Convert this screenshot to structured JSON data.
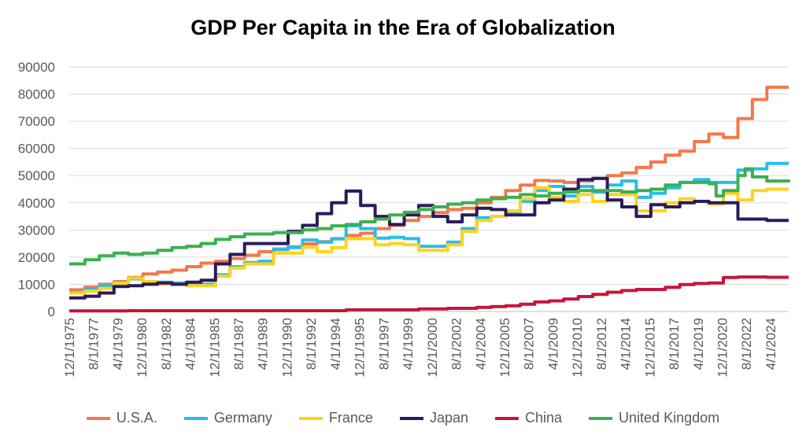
{
  "chart_data": {
    "type": "line",
    "title": "GDP Per Capita in the Era of Globalization",
    "xlabel": "",
    "ylabel": "",
    "ylim": [
      0,
      90000
    ],
    "yticks": [
      0,
      10000,
      20000,
      30000,
      40000,
      50000,
      60000,
      70000,
      80000,
      90000
    ],
    "xlim": [
      1975.92,
      2025.5
    ],
    "x_tick_labels": [
      "12/1/1975",
      "8/1/1977",
      "4/1/1979",
      "12/1/1980",
      "8/1/1982",
      "4/1/1984",
      "12/1/1985",
      "8/1/1987",
      "4/1/1989",
      "12/1/1990",
      "8/1/1992",
      "4/1/1994",
      "12/1/1995",
      "8/1/1997",
      "4/1/1999",
      "12/1/2000",
      "8/1/2002",
      "4/1/2004",
      "12/1/2005",
      "8/1/2007",
      "4/1/2009",
      "12/1/2010",
      "8/1/2012",
      "4/1/2014",
      "12/1/2015",
      "8/1/2017",
      "4/1/2019",
      "12/1/2020",
      "8/1/2022",
      "4/1/2024"
    ],
    "x_tick_values": [
      1975.92,
      1977.58,
      1979.25,
      1980.92,
      1982.58,
      1984.25,
      1985.92,
      1987.58,
      1989.25,
      1990.92,
      1992.58,
      1994.25,
      1995.92,
      1997.58,
      1999.25,
      2000.92,
      2002.58,
      2004.25,
      2005.92,
      2007.58,
      2009.25,
      2010.92,
      2012.58,
      2014.25,
      2015.92,
      2017.58,
      2019.25,
      2020.92,
      2022.58,
      2024.25
    ],
    "grid": true,
    "legend_position": "bottom",
    "series": [
      {
        "name": "U.S.A.",
        "color": "#F4784A",
        "x": [
          1975.92,
          1977,
          1978,
          1979,
          1980,
          1981,
          1982,
          1983,
          1984,
          1985,
          1986,
          1987,
          1988,
          1989,
          1990,
          1991,
          1992,
          1993,
          1994,
          1995,
          1996,
          1997,
          1998,
          1999,
          2000,
          2001,
          2002,
          2003,
          2004,
          2005,
          2006,
          2007,
          2008,
          2009,
          2010,
          2011,
          2012,
          2013,
          2014,
          2015,
          2016,
          2017,
          2018,
          2019,
          2020,
          2021,
          2022,
          2023,
          2024,
          2025.5
        ],
        "values": [
          8000,
          9000,
          10000,
          11000,
          12500,
          13800,
          14500,
          15200,
          16500,
          17800,
          18500,
          19500,
          20700,
          22000,
          23000,
          23800,
          24900,
          25700,
          26800,
          28000,
          28800,
          30500,
          31700,
          33500,
          35000,
          36400,
          37500,
          38000,
          40000,
          42000,
          44500,
          46500,
          48200,
          48000,
          47500,
          48000,
          48900,
          50000,
          51000,
          53000,
          55000,
          57500,
          59000,
          62500,
          65300,
          64000,
          71000,
          78000,
          82500,
          82500
        ]
      },
      {
        "name": "Germany",
        "color": "#27BDEB",
        "x": [
          1975.92,
          1977,
          1978,
          1979,
          1980,
          1981,
          1982,
          1983,
          1984,
          1985,
          1986,
          1987,
          1988,
          1989,
          1990,
          1991,
          1992,
          1993,
          1994,
          1995,
          1996,
          1997,
          1998,
          1999,
          2000,
          2001,
          2002,
          2003,
          2004,
          2005,
          2006,
          2007,
          2008,
          2009,
          2010,
          2011,
          2012,
          2013,
          2014,
          2015,
          2016,
          2017,
          2018,
          2019,
          2020,
          2021,
          2022,
          2023,
          2024,
          2025.5
        ],
        "values": [
          7000,
          8200,
          9500,
          10500,
          12000,
          11000,
          10800,
          10500,
          10000,
          10000,
          13500,
          16500,
          18000,
          18500,
          22800,
          23500,
          26300,
          25500,
          26700,
          31500,
          30500,
          27000,
          27300,
          26800,
          24000,
          24000,
          25500,
          30500,
          34500,
          35000,
          36700,
          40500,
          44500,
          46000,
          42500,
          46000,
          43900,
          46500,
          48000,
          42000,
          43500,
          45500,
          47500,
          48500,
          47500,
          47500,
          52000,
          52500,
          54500,
          54500
        ]
      },
      {
        "name": "France",
        "color": "#FFD21F",
        "x": [
          1975.92,
          1977,
          1978,
          1979,
          1980,
          1981,
          1982,
          1983,
          1984,
          1985,
          1986,
          1987,
          1988,
          1989,
          1990,
          1991,
          1992,
          1993,
          1994,
          1995,
          1996,
          1997,
          1998,
          1999,
          2000,
          2001,
          2002,
          2003,
          2004,
          2005,
          2006,
          2007,
          2008,
          2009,
          2010,
          2011,
          2012,
          2013,
          2014,
          2015,
          2016,
          2017,
          2018,
          2019,
          2020,
          2021,
          2022,
          2023,
          2024,
          2025.5
        ],
        "values": [
          6800,
          7500,
          8500,
          10500,
          12300,
          11000,
          10000,
          10000,
          9500,
          9500,
          13000,
          16000,
          17500,
          17500,
          21500,
          21500,
          23600,
          22000,
          23500,
          26800,
          26800,
          24500,
          25000,
          24500,
          22500,
          22500,
          24500,
          29500,
          33500,
          35000,
          37000,
          41500,
          45500,
          42000,
          40500,
          43000,
          40500,
          43000,
          43000,
          37000,
          37000,
          40000,
          41500,
          40500,
          39500,
          43500,
          41000,
          44500,
          45000,
          45000
        ]
      },
      {
        "name": "Japan",
        "color": "#2B1B59",
        "x": [
          1975.92,
          1977,
          1978,
          1979,
          1980,
          1981,
          1982,
          1983,
          1984,
          1985,
          1986,
          1987,
          1988,
          1989,
          1990,
          1991,
          1992,
          1993,
          1994,
          1995,
          1996,
          1997,
          1998,
          1999,
          2000,
          2001,
          2002,
          2003,
          2004,
          2005,
          2006,
          2007,
          2008,
          2009,
          2010,
          2011,
          2012,
          2013,
          2014,
          2015,
          2016,
          2017,
          2018,
          2019,
          2020,
          2021,
          2022,
          2023,
          2024,
          2025.5
        ],
        "values": [
          5000,
          5600,
          6800,
          9200,
          9500,
          10000,
          10500,
          10000,
          10800,
          11500,
          17500,
          21000,
          25000,
          25000,
          25000,
          29500,
          31700,
          36000,
          40000,
          44300,
          39000,
          35000,
          32000,
          35500,
          39000,
          35000,
          33000,
          35500,
          38000,
          37500,
          35500,
          35500,
          40000,
          41000,
          45000,
          48500,
          49000,
          41000,
          38500,
          35000,
          39300,
          38500,
          40000,
          40500,
          40000,
          40000,
          34000,
          34000,
          33500,
          33500
        ]
      },
      {
        "name": "China",
        "color": "#C9143C",
        "x": [
          1975.92,
          1980,
          1985,
          1990,
          1995,
          2000,
          2002,
          2004,
          2005,
          2006,
          2007,
          2008,
          2009,
          2010,
          2011,
          2012,
          2013,
          2014,
          2015,
          2016,
          2017,
          2018,
          2019,
          2020,
          2021,
          2022,
          2023,
          2024,
          2025.5
        ],
        "values": [
          200,
          300,
          300,
          300,
          600,
          950,
          1150,
          1500,
          1800,
          2100,
          2700,
          3500,
          3900,
          4600,
          5500,
          6300,
          7100,
          7700,
          8100,
          8100,
          8900,
          9900,
          10300,
          10500,
          12500,
          12700,
          12700,
          12600,
          12600
        ]
      },
      {
        "name": "United Kingdom",
        "color": "#3CB050",
        "x": [
          1975.92,
          1977,
          1978,
          1979,
          1980,
          1981,
          1982,
          1983,
          1984,
          1985,
          1986,
          1987,
          1988,
          1989,
          1990,
          1991,
          1992,
          1993,
          1994,
          1995,
          1996,
          1997,
          1998,
          1999,
          2000,
          2001,
          2002,
          2003,
          2004,
          2005,
          2006,
          2007,
          2008,
          2009,
          2010,
          2011,
          2012,
          2013,
          2014,
          2015,
          2016,
          2017,
          2018,
          2019,
          2020,
          2020.5,
          2021,
          2022,
          2022.5,
          2023,
          2024,
          2025.5
        ],
        "values": [
          17500,
          19000,
          20500,
          21500,
          21000,
          21500,
          22500,
          23500,
          24000,
          25000,
          26500,
          27500,
          28500,
          28500,
          29000,
          29000,
          30000,
          30500,
          31500,
          32000,
          33000,
          34000,
          35500,
          36500,
          37500,
          38500,
          39500,
          40000,
          41000,
          41500,
          42000,
          43000,
          42500,
          43500,
          44000,
          44500,
          44500,
          44500,
          44000,
          44500,
          45000,
          46500,
          47500,
          47500,
          47000,
          42500,
          44500,
          50000,
          52500,
          49500,
          48000,
          48500
        ]
      }
    ]
  }
}
